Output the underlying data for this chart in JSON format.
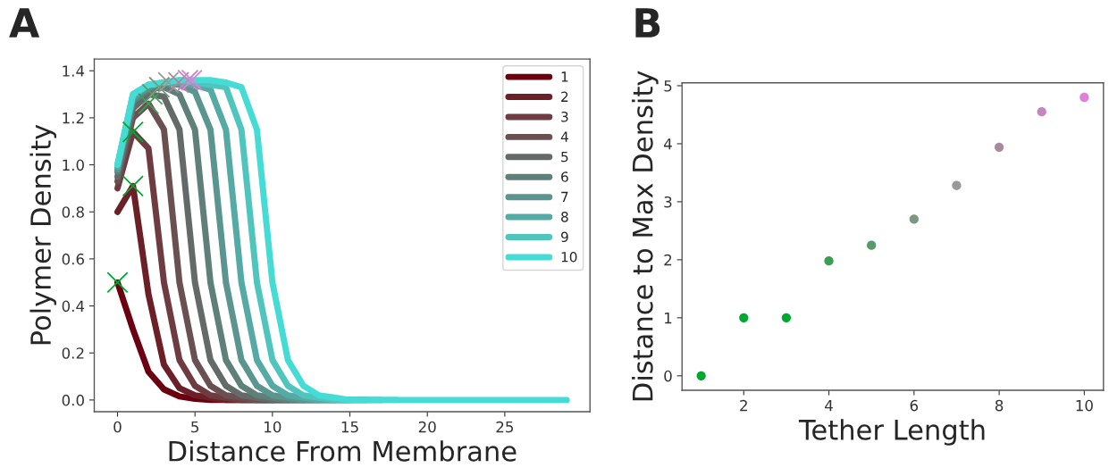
{
  "chart_data": [
    {
      "type": "line",
      "xlabel": "Distance From Membrane",
      "ylabel": "Polymer Density",
      "annotations": [
        "A"
      ],
      "x": [
        0,
        1,
        2,
        3,
        4,
        5,
        6,
        7,
        8,
        9,
        10,
        11,
        12,
        13,
        14,
        15,
        16,
        17,
        18,
        19,
        20,
        21,
        22,
        23,
        24,
        25,
        26,
        27,
        28,
        29
      ],
      "xlim": [
        -1.5,
        30.5
      ],
      "ylim": [
        -0.05,
        1.45
      ],
      "xticks": [
        0,
        5,
        10,
        15,
        20,
        25
      ],
      "yticks": [
        {
          "value": 0,
          "label": "0.0"
        },
        {
          "value": 0.2,
          "label": "0.2"
        },
        {
          "value": 0.4,
          "label": "0.4"
        },
        {
          "value": 0.6,
          "label": "0.6"
        },
        {
          "value": 0.8,
          "label": "0.8"
        },
        {
          "value": 1.0,
          "label": "1.0"
        },
        {
          "value": 1.2,
          "label": "1.2"
        },
        {
          "value": 1.4,
          "label": "1.4"
        }
      ],
      "legend": "top right",
      "grid": false,
      "series": [
        {
          "name": "1",
          "color": "#6b0010",
          "values": [
            0.5,
            0.3,
            0.12,
            0.045,
            0.015,
            0.005,
            0,
            0,
            0,
            0,
            0,
            null,
            null,
            null,
            null,
            null,
            null,
            null,
            null,
            null,
            null,
            null,
            null,
            null,
            null,
            null,
            null,
            null,
            null,
            null
          ]
        },
        {
          "name": "2",
          "color": "#6b2028",
          "values": [
            0.8,
            0.91,
            0.45,
            0.15,
            0.05,
            0.02,
            0.01,
            0,
            0,
            0,
            0,
            0,
            null,
            null,
            null,
            null,
            null,
            null,
            null,
            null,
            null,
            null,
            null,
            null,
            null,
            null,
            null,
            null,
            null,
            null
          ]
        },
        {
          "name": "3",
          "color": "#6e3c40",
          "values": [
            0.9,
            1.14,
            1.07,
            0.5,
            0.17,
            0.06,
            0.02,
            0.01,
            0,
            0,
            0,
            0,
            0,
            null,
            null,
            null,
            null,
            null,
            null,
            null,
            null,
            null,
            null,
            null,
            null,
            null,
            null,
            null,
            null,
            null
          ]
        },
        {
          "name": "4",
          "color": "#6a5050",
          "values": [
            0.93,
            1.2,
            1.26,
            1.15,
            0.5,
            0.17,
            0.06,
            0.02,
            0.01,
            0,
            0,
            0,
            0,
            0,
            null,
            null,
            null,
            null,
            null,
            null,
            null,
            null,
            null,
            null,
            null,
            null,
            null,
            null,
            null,
            null
          ]
        },
        {
          "name": "5",
          "color": "#646a68",
          "values": [
            0.95,
            1.24,
            1.3,
            1.29,
            1.15,
            0.5,
            0.17,
            0.06,
            0.02,
            0.01,
            0,
            0,
            0,
            0,
            0,
            null,
            null,
            null,
            null,
            null,
            null,
            null,
            null,
            null,
            null,
            null,
            null,
            null,
            null,
            null
          ]
        },
        {
          "name": "6",
          "color": "#5f8078",
          "values": [
            0.97,
            1.27,
            1.32,
            1.33,
            1.3,
            1.15,
            0.5,
            0.17,
            0.06,
            0.02,
            0.01,
            0,
            0,
            0,
            0,
            0,
            null,
            null,
            null,
            null,
            null,
            null,
            null,
            null,
            null,
            null,
            null,
            null,
            null,
            null
          ]
        },
        {
          "name": "7",
          "color": "#5a9590",
          "values": [
            0.98,
            1.28,
            1.33,
            1.35,
            1.34,
            1.31,
            1.15,
            0.5,
            0.17,
            0.06,
            0.02,
            0.01,
            0,
            0,
            0,
            0,
            0,
            null,
            null,
            null,
            null,
            null,
            null,
            null,
            null,
            null,
            null,
            null,
            null,
            null
          ]
        },
        {
          "name": "8",
          "color": "#55aaa5",
          "values": [
            0.99,
            1.29,
            1.34,
            1.35,
            1.35,
            1.34,
            1.32,
            1.15,
            0.5,
            0.17,
            0.06,
            0.02,
            0.01,
            0,
            0,
            0,
            0,
            0,
            null,
            null,
            null,
            null,
            null,
            null,
            null,
            null,
            null,
            null,
            null,
            null
          ]
        },
        {
          "name": "9",
          "color": "#50c5be",
          "values": [
            1.0,
            1.3,
            1.34,
            1.35,
            1.36,
            1.35,
            1.34,
            1.33,
            1.15,
            0.5,
            0.17,
            0.06,
            0.02,
            0.01,
            0,
            0,
            0,
            0,
            0,
            null,
            null,
            null,
            null,
            null,
            null,
            null,
            null,
            null,
            null,
            null
          ]
        },
        {
          "name": "10",
          "color": "#45dcd5",
          "values": [
            1.0,
            1.3,
            1.34,
            1.35,
            1.36,
            1.36,
            1.36,
            1.35,
            1.33,
            1.15,
            0.5,
            0.17,
            0.06,
            0.02,
            0.01,
            0,
            0,
            0,
            0,
            0,
            0,
            0,
            0,
            0,
            0,
            0,
            0,
            0,
            0,
            0
          ]
        },
        {
          "type": "scatter",
          "marker": "cross",
          "x": [
            0,
            1,
            1,
            2,
            2.25,
            2.7,
            3.28,
            3.94,
            4.55,
            4.8
          ],
          "values": [
            0.5,
            0.91,
            1.14,
            1.26,
            1.3,
            1.33,
            1.35,
            1.35,
            1.36,
            1.36
          ],
          "colors": [
            "#00a832",
            "#00a832",
            "#00a832",
            "#3a9e55",
            "#5a9a6a",
            "#7a9a80",
            "#999a95",
            "#a88a9e",
            "#c585bf",
            "#e080d8"
          ]
        }
      ]
    },
    {
      "type": "scatter",
      "xlabel": "Tether Length",
      "ylabel": "Distance to Max Density",
      "annotations": [
        "B"
      ],
      "marker": "circle",
      "grid": false,
      "x": [
        1,
        2,
        3,
        4,
        5,
        6,
        7,
        8,
        9,
        10
      ],
      "xlim": [
        0.55,
        10.45
      ],
      "ylim": [
        -0.25,
        5.05
      ],
      "xticks": [
        2,
        4,
        6,
        8,
        10
      ],
      "yticks": [
        0,
        1,
        2,
        3,
        4,
        5
      ],
      "series": [
        {
          "values": [
            0,
            1,
            1,
            1.98,
            2.25,
            2.7,
            3.28,
            3.94,
            4.55,
            4.8
          ],
          "colors": [
            "#00a832",
            "#00a832",
            "#00a832",
            "#3a9e55",
            "#5a9a6a",
            "#7a9a80",
            "#999a95",
            "#a88a9e",
            "#c585bf",
            "#e080d8"
          ]
        }
      ]
    }
  ]
}
